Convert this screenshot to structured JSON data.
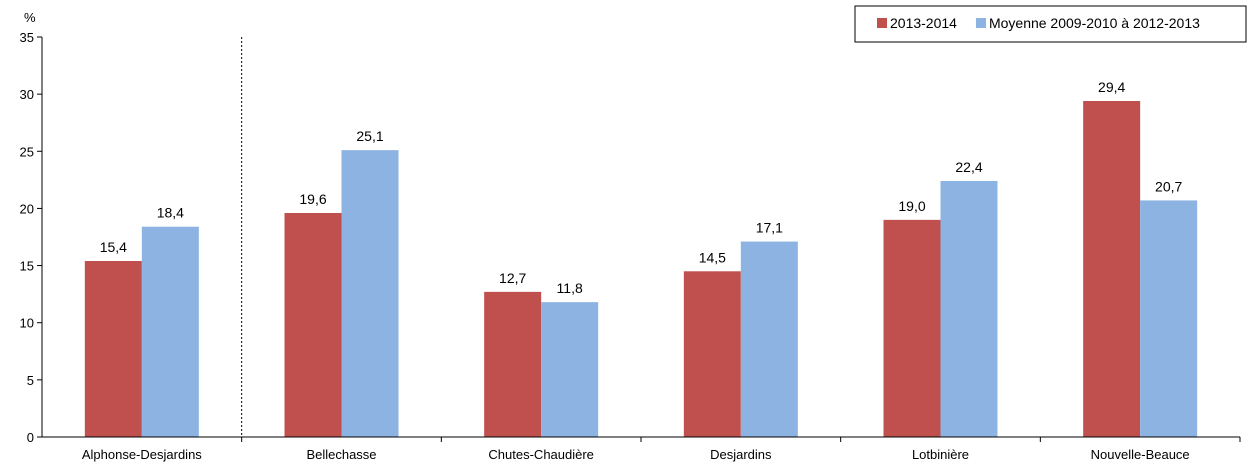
{
  "chart_data": {
    "type": "bar",
    "ylabel": "%",
    "ylim": [
      0,
      35
    ],
    "yticks": [
      0,
      5,
      10,
      15,
      20,
      25,
      30,
      35
    ],
    "categories": [
      "Alphonse-Desjardins",
      "Bellechasse",
      "Chutes-Chaudière",
      "Desjardins",
      "Lotbinière",
      "Nouvelle-Beauce"
    ],
    "series": [
      {
        "name": "2013-2014",
        "color": "#c0504d",
        "values": [
          15.4,
          19.6,
          12.7,
          14.5,
          19.0,
          29.4
        ],
        "labels": [
          "15,4",
          "19,6",
          "12,7",
          "14,5",
          "19,0",
          "29,4"
        ]
      },
      {
        "name": "Moyenne 2009-2010 à 2012-2013",
        "color": "#8db3e2",
        "values": [
          18.4,
          25.1,
          11.8,
          17.1,
          22.4,
          20.7
        ],
        "labels": [
          "18,4",
          "25,1",
          "11,8",
          "17,1",
          "22,4",
          "20,7"
        ]
      }
    ],
    "separator_after_category": 0,
    "legend_position": "top-right",
    "grid": false
  }
}
